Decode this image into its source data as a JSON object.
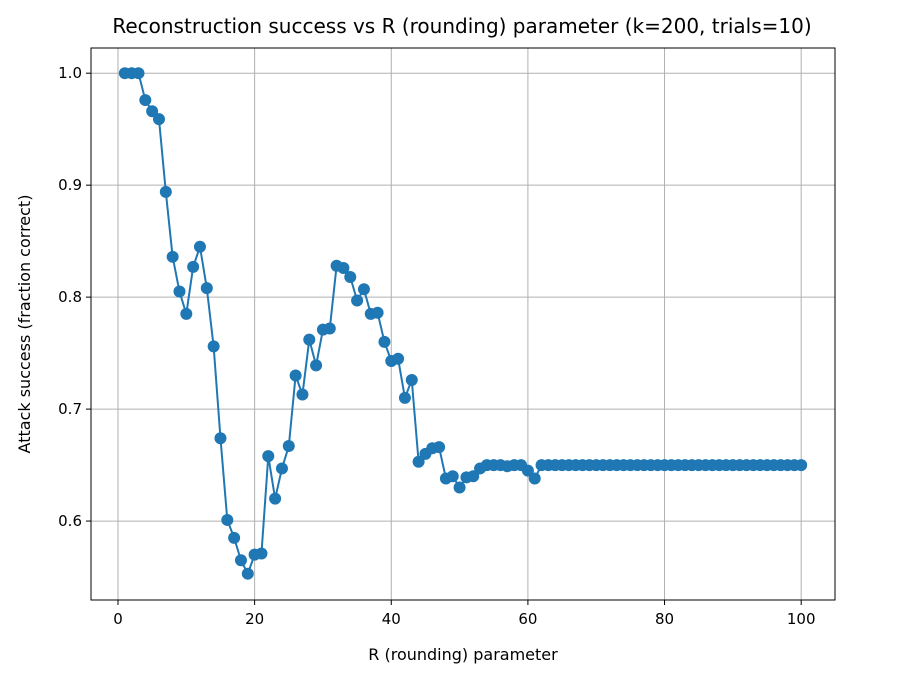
{
  "chart_data": {
    "type": "line",
    "title": "Reconstruction success vs R (rounding) parameter (k=200, trials=10)",
    "xlabel": "R (rounding) parameter",
    "ylabel": "Attack success (fraction correct)",
    "xlim": [
      -3.95,
      104.95
    ],
    "ylim": [
      0.5295,
      1.0225
    ],
    "xticks": [
      0,
      20,
      40,
      60,
      80,
      100
    ],
    "yticks": [
      0.6,
      0.7,
      0.8,
      0.9,
      1.0
    ],
    "xtick_labels": [
      "0",
      "20",
      "40",
      "60",
      "80",
      "100"
    ],
    "ytick_labels": [
      "0.6",
      "0.7",
      "0.8",
      "0.9",
      "1.0"
    ],
    "grid": true,
    "marker": "circle",
    "color": "#1f77b4",
    "series": [
      {
        "x": [
          1,
          2,
          3,
          4,
          5,
          6,
          7,
          8,
          9,
          10,
          11,
          12,
          13,
          14,
          15,
          16,
          17,
          18,
          19,
          20,
          21,
          22,
          23,
          24,
          25,
          26,
          27,
          28,
          29,
          30,
          31,
          32,
          33,
          34,
          35,
          36,
          37,
          38,
          39,
          40,
          41,
          42,
          43,
          44,
          45,
          46,
          47,
          48,
          49,
          50,
          51,
          52,
          53,
          54,
          55,
          56,
          57,
          58,
          59,
          60,
          61,
          62,
          63,
          64,
          65,
          66,
          67,
          68,
          69,
          70,
          71,
          72,
          73,
          74,
          75,
          76,
          77,
          78,
          79,
          80,
          81,
          82,
          83,
          84,
          85,
          86,
          87,
          88,
          89,
          90,
          91,
          92,
          93,
          94,
          95,
          96,
          97,
          98,
          99,
          100
        ],
        "y": [
          1.0,
          1.0,
          1.0,
          0.976,
          0.966,
          0.959,
          0.894,
          0.836,
          0.805,
          0.785,
          0.827,
          0.845,
          0.808,
          0.756,
          0.674,
          0.601,
          0.585,
          0.565,
          0.553,
          0.57,
          0.571,
          0.658,
          0.62,
          0.647,
          0.667,
          0.73,
          0.713,
          0.762,
          0.739,
          0.771,
          0.772,
          0.828,
          0.826,
          0.818,
          0.797,
          0.807,
          0.785,
          0.786,
          0.76,
          0.743,
          0.745,
          0.71,
          0.726,
          0.653,
          0.66,
          0.665,
          0.666,
          0.638,
          0.64,
          0.63,
          0.639,
          0.64,
          0.647,
          0.65,
          0.65,
          0.65,
          0.649,
          0.65,
          0.65,
          0.645,
          0.638,
          0.65,
          0.65,
          0.65,
          0.65,
          0.65,
          0.65,
          0.65,
          0.65,
          0.65,
          0.65,
          0.65,
          0.65,
          0.65,
          0.65,
          0.65,
          0.65,
          0.65,
          0.65,
          0.65,
          0.65,
          0.65,
          0.65,
          0.65,
          0.65,
          0.65,
          0.65,
          0.65,
          0.65,
          0.65,
          0.65,
          0.65,
          0.65,
          0.65,
          0.65,
          0.65,
          0.65,
          0.65,
          0.65,
          0.65
        ]
      }
    ]
  }
}
